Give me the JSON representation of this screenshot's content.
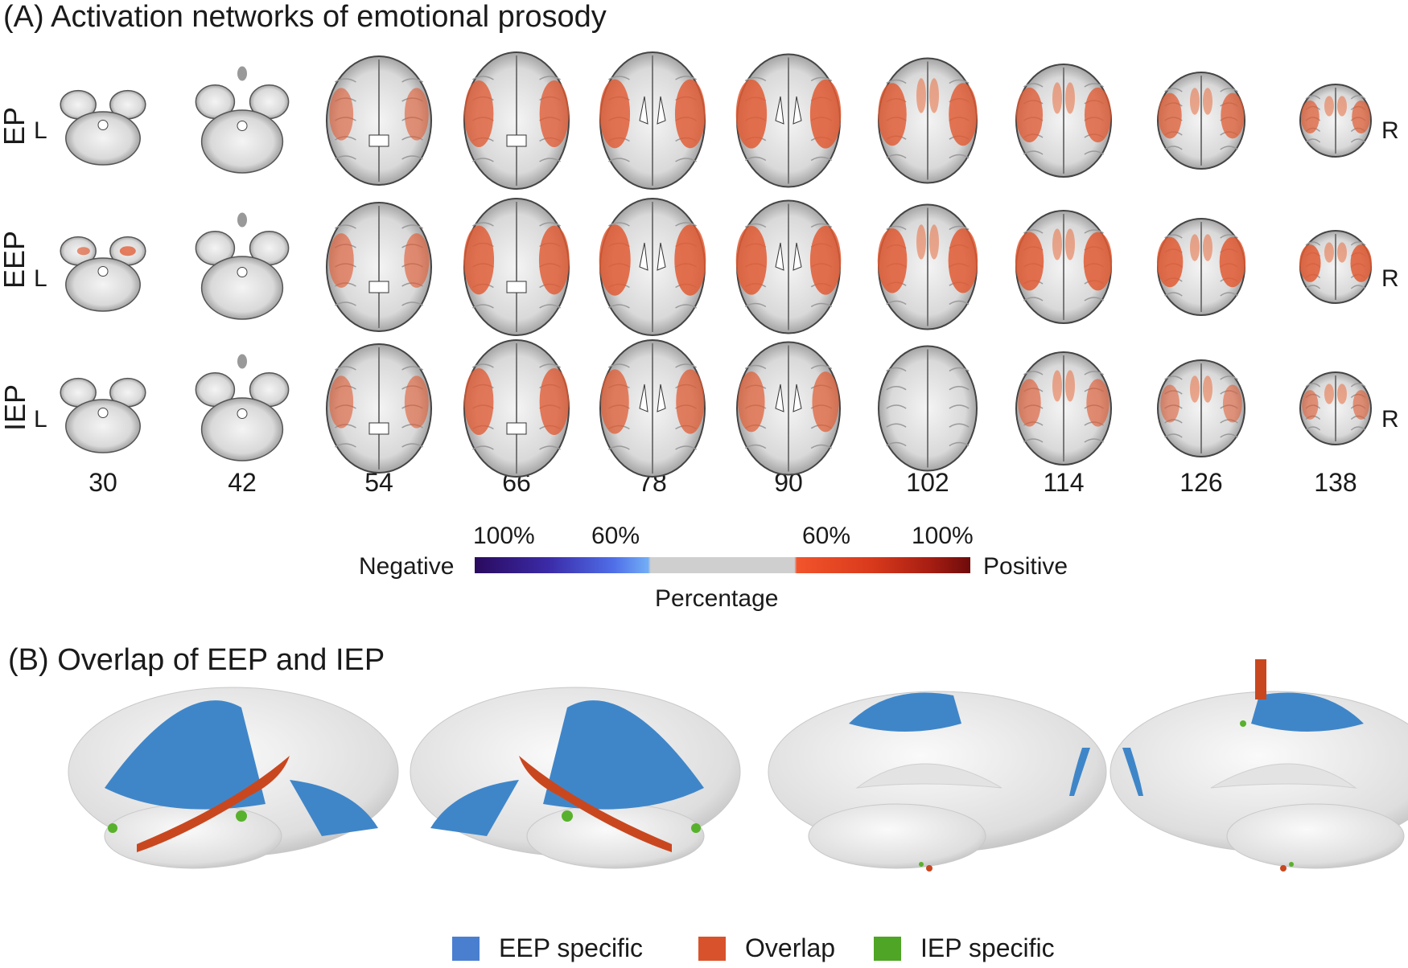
{
  "panel_a": {
    "title": "(A) Activation networks of emotional prosody",
    "rows": [
      {
        "label": "EP",
        "left": "L",
        "right": "R"
      },
      {
        "label": "EEP",
        "left": "L",
        "right": "R"
      },
      {
        "label": "IEP",
        "left": "L",
        "right": "R"
      }
    ],
    "slices": [
      "30",
      "42",
      "54",
      "66",
      "78",
      "90",
      "102",
      "114",
      "126",
      "138"
    ],
    "colorbar": {
      "left_label": "Negative",
      "right_label": "Positive",
      "caption": "Percentage",
      "ticks": [
        "100%",
        "60%",
        "60%",
        "100%"
      ],
      "negative_colors": [
        "#2a0a5e",
        "#4f6ee8",
        "#72aef5"
      ],
      "neutral_color": "#cfcfcf",
      "positive_colors": [
        "#f2542c",
        "#d93a1c",
        "#6e0b0b"
      ]
    }
  },
  "panel_b": {
    "title": "(B) Overlap of EEP and IEP",
    "views": [
      "left-lateral",
      "right-lateral",
      "left-medial",
      "right-medial"
    ],
    "legend": [
      {
        "label": "EEP specific",
        "color": "#4a7fd0"
      },
      {
        "label": "Overlap",
        "color": "#d8532b"
      },
      {
        "label": "IEP specific",
        "color": "#4ea526"
      }
    ]
  }
}
